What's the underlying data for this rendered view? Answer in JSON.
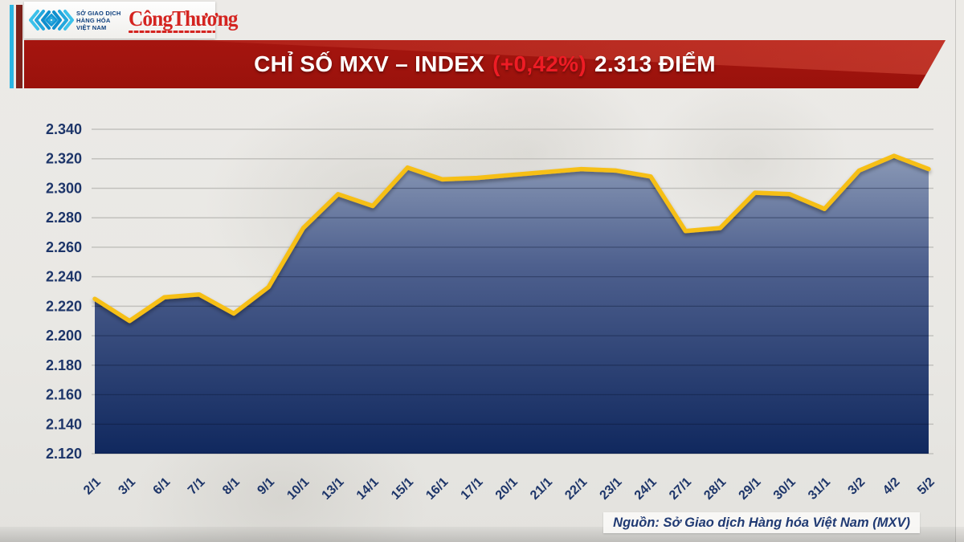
{
  "header": {
    "mxv_logo": {
      "icon": "mxv-chevron-diamond-icon",
      "lines": [
        "SỞ GIAO DỊCH",
        "HÀNG HÓA",
        "VIỆT NAM"
      ]
    },
    "congthuong_logo": {
      "text": "CôngThương"
    },
    "banner": {
      "title_main": "CHỈ SỐ MXV – INDEX",
      "title_change": "(+0,42%)",
      "title_value": "2.313 ĐIỂM"
    }
  },
  "footer": {
    "source": "Nguồn: Sở Giao dịch Hàng hóa Việt Nam (MXV)"
  },
  "colors": {
    "line": "#f6bf17",
    "fill_top": "#98a6bf",
    "fill_mid": "#4e608e",
    "fill_bottom": "#10285e",
    "banner_red": "#9a120c",
    "change_red": "#ee1c25",
    "axis_navy": "#1d3569",
    "gridline": "#c2c1bd",
    "accent_cyan": "#2bb5e2",
    "accent_maroon": "#7d211a"
  },
  "chart_data": {
    "type": "area",
    "title": "CHỈ SỐ MXV – INDEX (+0,42%) 2.313 ĐIỂM",
    "x": [
      "2/1",
      "3/1",
      "6/1",
      "7/1",
      "8/1",
      "9/1",
      "10/1",
      "13/1",
      "14/1",
      "15/1",
      "16/1",
      "17/1",
      "20/1",
      "21/1",
      "22/1",
      "23/1",
      "24/1",
      "27/1",
      "28/1",
      "29/1",
      "30/1",
      "31/1",
      "3/2",
      "4/2",
      "5/2"
    ],
    "series": [
      {
        "name": "MXV-Index",
        "values": [
          2.225,
          2.21,
          2.226,
          2.228,
          2.215,
          2.233,
          2.273,
          2.296,
          2.288,
          2.314,
          2.306,
          2.307,
          2.309,
          2.311,
          2.313,
          2.312,
          2.308,
          2.271,
          2.273,
          2.297,
          2.296,
          2.286,
          2.312,
          2.322,
          2.313
        ]
      }
    ],
    "ylim": [
      2.12,
      2.34
    ],
    "ytick_step": 0.02,
    "ytick_labels": [
      "2.340",
      "2.320",
      "2.300",
      "2.280",
      "2.260",
      "2.240",
      "2.220",
      "2.200",
      "2.180",
      "2.160",
      "2.140",
      "2.120"
    ],
    "grid": true,
    "legend": "none",
    "xlabel": "",
    "ylabel": ""
  }
}
